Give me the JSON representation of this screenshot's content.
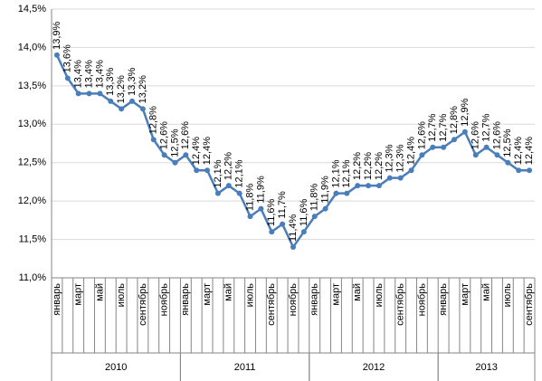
{
  "chart_data": {
    "type": "line",
    "categories": [
      "январь",
      null,
      "март",
      null,
      "май",
      null,
      "июль",
      null,
      "сентябрь",
      null,
      "ноябрь",
      null,
      "январь",
      null,
      "март",
      null,
      "май",
      null,
      "июль",
      null,
      "сентябрь",
      null,
      "ноябрь",
      null,
      "январь",
      null,
      "март",
      null,
      "май",
      null,
      "июль",
      null,
      "сентябрь",
      null,
      "ноябрь",
      null,
      "январь",
      null,
      "март",
      null,
      "май",
      null,
      "июль",
      null,
      "сентябрь"
    ],
    "x_groups": [
      {
        "label": "2010",
        "count": 12
      },
      {
        "label": "2011",
        "count": 12
      },
      {
        "label": "2012",
        "count": 12
      },
      {
        "label": "2013",
        "count": 9
      }
    ],
    "series": [
      {
        "color": "#4a7ebb",
        "values": [
          13.9,
          13.6,
          13.4,
          13.4,
          13.4,
          13.3,
          13.2,
          13.3,
          13.2,
          12.8,
          12.6,
          12.5,
          12.6,
          12.4,
          12.4,
          12.1,
          12.2,
          12.1,
          11.8,
          11.9,
          11.6,
          11.7,
          11.4,
          11.6,
          11.8,
          11.9,
          12.1,
          12.1,
          12.2,
          12.2,
          12.2,
          12.3,
          12.3,
          12.4,
          12.6,
          12.7,
          12.7,
          12.8,
          12.9,
          12.6,
          12.7,
          12.6,
          12.5,
          12.4,
          12.4
        ],
        "value_labels": [
          "13,9%",
          "13,6%",
          "13,4%",
          "13,4%",
          "13,4%",
          "13,3%",
          "13,2%",
          "13,3%",
          "13,2%",
          "12,8%",
          "12,6%",
          "12,5%",
          "12,6%",
          "12,4%",
          "12,4%",
          "12,1%",
          "12,2%",
          "12,1%",
          "11,8%",
          "11,9%",
          "11,6%",
          "11,7%",
          "11,4%",
          "11,6%",
          "11,8%",
          "11,9%",
          "12,1%",
          "12,1%",
          "12,2%",
          "12,2%",
          "12,2%",
          "12,3%",
          "12,3%",
          "12,4%",
          "12,6%",
          "12,7%",
          "12,7%",
          "12,8%",
          "12,9%",
          "12,6%",
          "12,7%",
          "12,6%",
          "12,5%",
          "12,4%",
          "12,4%"
        ]
      }
    ],
    "ylim": [
      11.0,
      14.5
    ],
    "yticks": [
      {
        "value": 11.0,
        "label": "11,0%"
      },
      {
        "value": 11.5,
        "label": "11,5%"
      },
      {
        "value": 12.0,
        "label": "12,0%"
      },
      {
        "value": 12.5,
        "label": "12,5%"
      },
      {
        "value": 13.0,
        "label": "13,0%"
      },
      {
        "value": 13.5,
        "label": "13,5%"
      },
      {
        "value": 14.0,
        "label": "14,0%"
      },
      {
        "value": 14.5,
        "label": "14,5%"
      }
    ],
    "grid": true
  }
}
